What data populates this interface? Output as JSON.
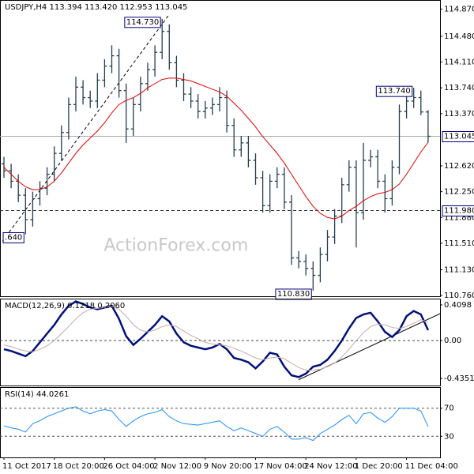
{
  "chart_data": [
    {
      "type": "ohlc",
      "title": "USDJPY,H4 113.394 113.420 112.953 113.045",
      "watermark": "ActionForex.com",
      "xlim": [
        -0.55,
        60.66
      ],
      "ylim": [
        110.75,
        115.0
      ],
      "color": "#213f4f",
      "yticks": [
        {
          "value": 114.87,
          "label": "114.870"
        },
        {
          "value": 114.48,
          "label": "114.480"
        },
        {
          "value": 114.11,
          "label": "114.110"
        },
        {
          "value": 113.74,
          "label": "113.740"
        },
        {
          "value": 113.37,
          "label": "113.370"
        },
        {
          "value": 112.62,
          "label": "112.620"
        },
        {
          "value": 112.25,
          "label": "112.250"
        },
        {
          "value": 111.88,
          "label": "111.880"
        },
        {
          "value": 111.51,
          "label": "111.510"
        },
        {
          "value": 111.13,
          "label": "111.130"
        },
        {
          "value": 110.76,
          "label": "110.760"
        }
      ],
      "ohlc": [
        [
          112.65,
          112.75,
          112.45,
          112.55
        ],
        [
          112.55,
          112.65,
          112.3,
          112.4
        ],
        [
          112.4,
          112.5,
          112.1,
          112.2
        ],
        [
          112.2,
          112.3,
          111.64,
          111.85
        ],
        [
          111.85,
          112.25,
          111.75,
          112.15
        ],
        [
          112.15,
          112.4,
          112.05,
          112.3
        ],
        [
          112.3,
          112.6,
          112.2,
          112.5
        ],
        [
          112.5,
          112.9,
          112.4,
          112.8
        ],
        [
          112.8,
          113.2,
          112.7,
          113.1
        ],
        [
          113.1,
          113.6,
          113.0,
          113.5
        ],
        [
          113.5,
          113.9,
          113.4,
          113.75
        ],
        [
          113.75,
          113.85,
          113.5,
          113.6
        ],
        [
          113.6,
          113.7,
          113.45,
          113.55
        ],
        [
          113.55,
          113.95,
          113.45,
          113.85
        ],
        [
          113.85,
          114.15,
          113.75,
          114.05
        ],
        [
          114.05,
          114.35,
          113.95,
          114.2
        ],
        [
          114.2,
          114.3,
          113.6,
          113.7
        ],
        [
          113.7,
          113.8,
          112.95,
          113.15
        ],
        [
          113.15,
          113.6,
          113.05,
          113.5
        ],
        [
          113.5,
          113.9,
          113.4,
          113.8
        ],
        [
          113.8,
          114.1,
          113.7,
          114.0
        ],
        [
          114.0,
          114.35,
          113.9,
          114.25
        ],
        [
          114.25,
          114.73,
          114.15,
          114.55
        ],
        [
          114.55,
          114.65,
          114.0,
          114.1
        ],
        [
          114.1,
          114.2,
          113.75,
          113.85
        ],
        [
          113.85,
          113.95,
          113.55,
          113.65
        ],
        [
          113.65,
          113.75,
          113.45,
          113.55
        ],
        [
          113.55,
          113.65,
          113.3,
          113.4
        ],
        [
          113.4,
          113.55,
          113.3,
          113.45
        ],
        [
          113.45,
          113.6,
          113.35,
          113.5
        ],
        [
          113.5,
          113.75,
          113.4,
          113.6
        ],
        [
          113.6,
          113.7,
          113.1,
          113.2
        ],
        [
          113.2,
          113.3,
          112.75,
          112.85
        ],
        [
          112.85,
          113.05,
          112.75,
          112.95
        ],
        [
          112.95,
          113.05,
          112.6,
          112.7
        ],
        [
          112.7,
          112.8,
          112.35,
          112.45
        ],
        [
          112.45,
          112.55,
          111.95,
          112.05
        ],
        [
          112.05,
          112.5,
          111.95,
          112.4
        ],
        [
          112.4,
          112.6,
          112.3,
          112.5
        ],
        [
          112.5,
          112.6,
          112.0,
          112.1
        ],
        [
          112.1,
          112.2,
          111.2,
          111.3
        ],
        [
          111.3,
          111.4,
          111.15,
          111.25
        ],
        [
          111.25,
          111.35,
          111.05,
          111.15
        ],
        [
          111.15,
          111.25,
          110.83,
          111.05
        ],
        [
          111.05,
          111.45,
          110.95,
          111.35
        ],
        [
          111.35,
          111.7,
          111.25,
          111.6
        ],
        [
          111.6,
          112.0,
          111.5,
          111.9
        ],
        [
          111.9,
          112.45,
          111.8,
          112.35
        ],
        [
          112.35,
          112.7,
          112.25,
          112.6
        ],
        [
          112.6,
          112.7,
          111.45,
          111.95
        ],
        [
          111.95,
          112.95,
          111.85,
          112.7
        ],
        [
          112.7,
          112.85,
          112.6,
          112.75
        ],
        [
          112.75,
          112.85,
          112.3,
          112.4
        ],
        [
          112.4,
          112.5,
          111.95,
          112.15
        ],
        [
          112.15,
          112.7,
          112.05,
          112.6
        ],
        [
          112.6,
          113.5,
          112.5,
          113.4
        ],
        [
          113.4,
          113.65,
          113.3,
          113.55
        ],
        [
          113.55,
          113.74,
          113.45,
          113.6
        ],
        [
          113.6,
          113.7,
          113.35,
          113.394
        ],
        [
          113.394,
          113.42,
          112.953,
          113.045
        ]
      ],
      "series": [
        {
          "color": "#e00000",
          "values": [
            112.6,
            112.5,
            112.4,
            112.32,
            112.28,
            112.28,
            112.32,
            112.4,
            112.52,
            112.66,
            112.8,
            112.92,
            113.02,
            113.12,
            113.24,
            113.38,
            113.5,
            113.56,
            113.6,
            113.66,
            113.74,
            113.8,
            113.86,
            113.88,
            113.88,
            113.86,
            113.84,
            113.8,
            113.76,
            113.72,
            113.68,
            113.62,
            113.52,
            113.42,
            113.3,
            113.18,
            113.04,
            112.92,
            112.8,
            112.66,
            112.5,
            112.34,
            112.18,
            112.04,
            111.94,
            111.88,
            111.86,
            111.9,
            111.98,
            112.04,
            112.12,
            112.18,
            112.22,
            112.24,
            112.28,
            112.36,
            112.5,
            112.66,
            112.82,
            112.96
          ]
        }
      ],
      "hlines": [
        {
          "value": 111.98,
          "label": "111.980",
          "dashed": true
        },
        {
          "value": 113.045,
          "label": "113.045",
          "dashed": false
        }
      ],
      "annotations": [
        {
          "label": "114.730",
          "value": 114.73,
          "x": 22
        },
        {
          "label": "113.740",
          "value": 113.74,
          "x": 57
        },
        {
          "label": "110.830",
          "value": 110.83,
          "x": 43
        },
        {
          "label": ".640",
          "value": 111.64,
          "x": 3
        }
      ],
      "trendlines": [
        {
          "x": [
            -0.2,
            22.9
          ],
          "y": [
            111.54,
            114.78
          ],
          "dashed": true
        }
      ]
    },
    {
      "type": "line",
      "title": "MACD(12,26,9) 0.1218 0.2060",
      "xlim": [
        -0.55,
        60.66
      ],
      "ylim": [
        -0.517,
        0.482
      ],
      "zero_line": true,
      "yticks": [
        0.4098,
        {
          "value": 0,
          "label": "0.00"
        },
        -0.4351
      ],
      "series": [
        {
          "color": "#00107a",
          "values": [
            -0.1,
            -0.12,
            -0.15,
            -0.18,
            -0.12,
            -0.02,
            0.08,
            0.18,
            0.3,
            0.4,
            0.45,
            0.42,
            0.38,
            0.36,
            0.38,
            0.4,
            0.25,
            0.05,
            -0.05,
            0.02,
            0.1,
            0.18,
            0.28,
            0.22,
            0.08,
            -0.02,
            -0.06,
            -0.08,
            -0.1,
            -0.08,
            -0.04,
            -0.1,
            -0.2,
            -0.22,
            -0.25,
            -0.32,
            -0.24,
            -0.14,
            -0.16,
            -0.3,
            -0.4,
            -0.42,
            -0.38,
            -0.3,
            -0.28,
            -0.22,
            -0.12,
            0.0,
            0.14,
            0.26,
            0.3,
            0.32,
            0.22,
            0.1,
            0.04,
            0.12,
            0.28,
            0.34,
            0.3,
            0.12
          ]
        },
        {
          "color": "#c9a9a9",
          "values": [
            -0.05,
            -0.07,
            -0.1,
            -0.12,
            -0.13,
            -0.1,
            -0.06,
            0.0,
            0.08,
            0.16,
            0.25,
            0.32,
            0.36,
            0.37,
            0.38,
            0.39,
            0.36,
            0.28,
            0.18,
            0.12,
            0.1,
            0.12,
            0.16,
            0.18,
            0.16,
            0.11,
            0.06,
            0.02,
            -0.02,
            -0.04,
            -0.05,
            -0.06,
            -0.09,
            -0.12,
            -0.16,
            -0.2,
            -0.22,
            -0.2,
            -0.19,
            -0.21,
            -0.26,
            -0.31,
            -0.34,
            -0.34,
            -0.33,
            -0.3,
            -0.26,
            -0.19,
            -0.1,
            0.0,
            0.09,
            0.16,
            0.19,
            0.18,
            0.15,
            0.14,
            0.16,
            0.2,
            0.24,
            0.21
          ]
        }
      ],
      "trendlines": [
        {
          "x": [
            41,
            60.7
          ],
          "y": [
            -0.45,
            0.31
          ],
          "dashed": false
        }
      ]
    },
    {
      "type": "line",
      "title": "RSI(14) 44.0261",
      "xlim": [
        -0.55,
        60.66
      ],
      "ylim": [
        0,
        100
      ],
      "grid": "dashed",
      "yticks": [
        70,
        30
      ],
      "series": [
        {
          "color": "#1e8fff",
          "values": [
            45,
            42,
            40,
            36,
            48,
            52,
            58,
            62,
            66,
            70,
            72,
            66,
            62,
            66,
            68,
            66,
            54,
            44,
            52,
            58,
            62,
            64,
            68,
            58,
            52,
            48,
            47,
            46,
            48,
            50,
            52,
            44,
            38,
            42,
            38,
            34,
            30,
            40,
            44,
            36,
            26,
            26,
            28,
            24,
            34,
            40,
            46,
            54,
            60,
            48,
            62,
            64,
            56,
            50,
            58,
            70,
            70,
            70,
            66,
            44
          ]
        }
      ],
      "xticks": [
        {
          "value": 0,
          "label": "11 Oct 2017"
        },
        {
          "value": 7,
          "label": "18 Oct 20:00"
        },
        {
          "value": 14,
          "label": "26 Oct 04:00"
        },
        {
          "value": 21,
          "label": "2 Nov 12:00"
        },
        {
          "value": 28,
          "label": "9 Nov 20:00"
        },
        {
          "value": 35,
          "label": "17 Nov 04:00"
        },
        {
          "value": 42,
          "label": "24 Nov 12:00"
        },
        {
          "value": 49,
          "label": "1 Dec 20:00"
        },
        {
          "value": 56,
          "label": "11 Dec 04:00"
        }
      ]
    }
  ]
}
